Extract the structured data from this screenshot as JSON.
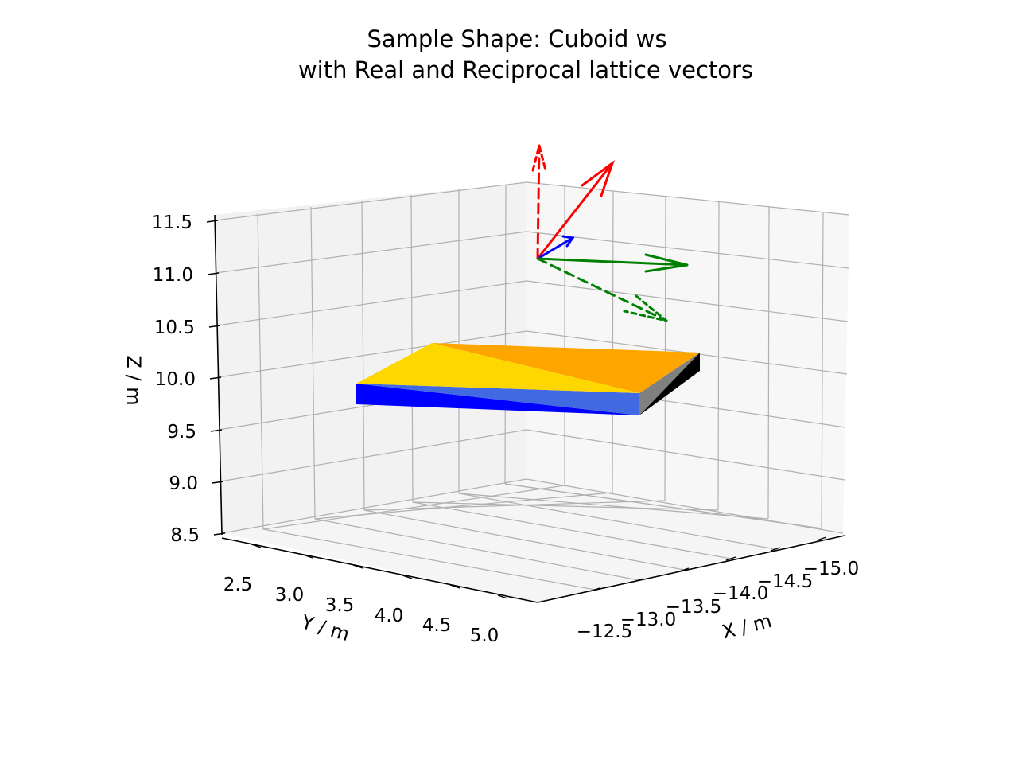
{
  "chart_data": {
    "type": "3d-plot",
    "title": "Sample Shape: Cuboid ws",
    "subtitle": "with Real and Reciprocal lattice vectors",
    "xlabel": "X / m",
    "ylabel": "Y / m",
    "zlabel": "Z / m",
    "x_ticks": [
      "−12.5",
      "−13.0",
      "−13.5",
      "−14.0",
      "−14.5",
      "−15.0"
    ],
    "y_ticks": [
      "2.5",
      "3.0",
      "3.5",
      "4.0",
      "4.5",
      "5.0"
    ],
    "z_ticks": [
      "8.5",
      "9.0",
      "9.5",
      "10.0",
      "10.5",
      "11.0",
      "11.5"
    ],
    "xlim": [
      -12.3,
      -15.3
    ],
    "ylim": [
      2.25,
      5.1
    ],
    "zlim": [
      8.5,
      11.6
    ],
    "grid": true,
    "cuboid_faces": [
      {
        "face": "top-left",
        "color": "#ffd700"
      },
      {
        "face": "top-right",
        "color": "#ffa500"
      },
      {
        "face": "front-upper",
        "color": "#4169e1"
      },
      {
        "face": "front-lower",
        "color": "#0000ff"
      },
      {
        "face": "right-upper",
        "color": "#808080"
      },
      {
        "face": "right-lower",
        "color": "#000000"
      }
    ],
    "vectors": [
      {
        "kind": "real",
        "axis": "a",
        "color": "#ff0000",
        "style": "solid"
      },
      {
        "kind": "real",
        "axis": "b",
        "color": "#008000",
        "style": "solid"
      },
      {
        "kind": "real",
        "axis": "c",
        "color": "#0000ff",
        "style": "solid"
      },
      {
        "kind": "reciprocal",
        "axis": "a*",
        "color": "#ff0000",
        "style": "dashed"
      },
      {
        "kind": "reciprocal",
        "axis": "b*",
        "color": "#008000",
        "style": "dashed"
      }
    ]
  }
}
